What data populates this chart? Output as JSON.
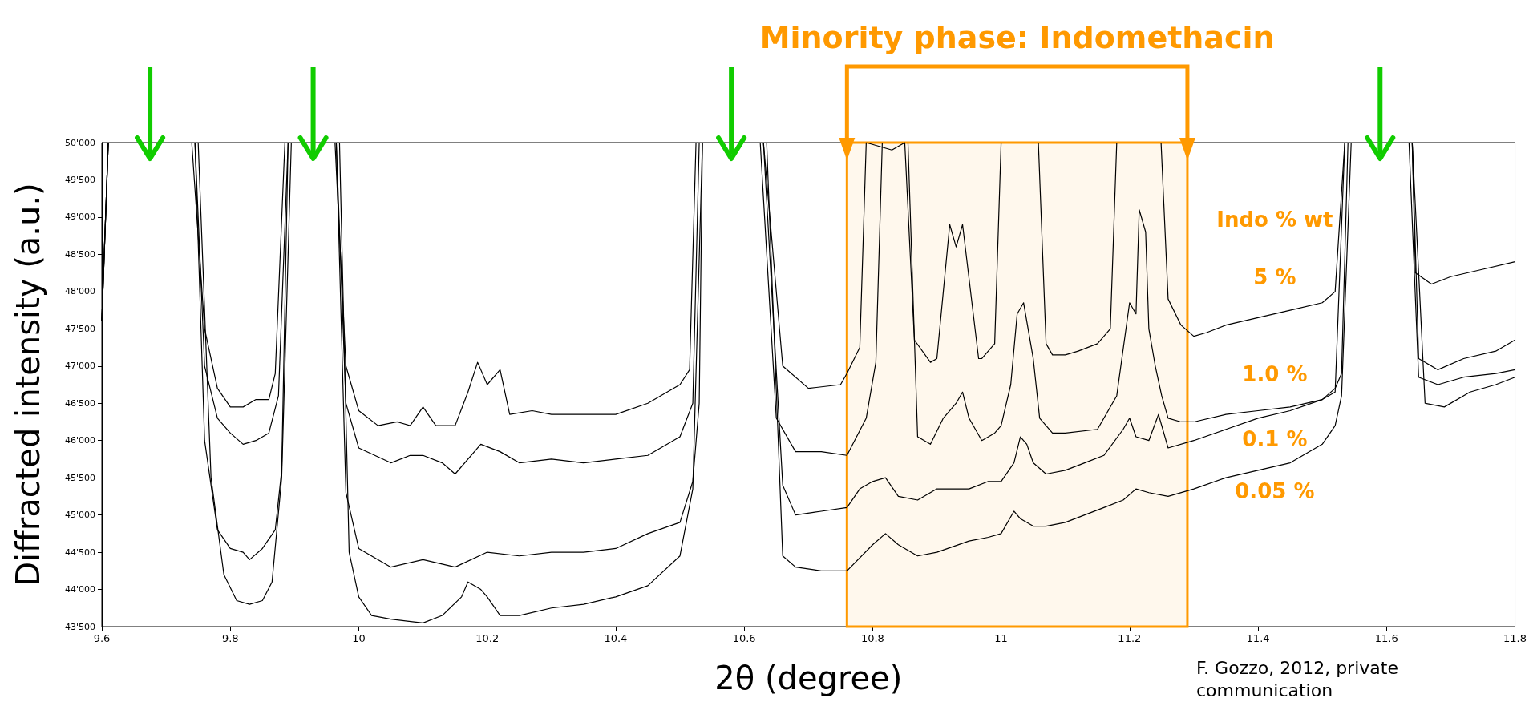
{
  "chart_data": {
    "type": "line",
    "xlabel": "2θ (degree)",
    "ylabel": "Diffracted intensity (a.u.)",
    "legend_title": "Indo % wt",
    "legend": false,
    "grid": false,
    "marker": "none",
    "line_style": "solid",
    "xlim": [
      9.6,
      11.8
    ],
    "xticks": [
      9.6,
      9.8,
      10,
      10.2,
      10.4,
      10.6,
      10.8,
      11,
      11.2,
      11.4,
      11.6,
      11.8
    ],
    "ylim": [
      43500,
      50000
    ],
    "yticks": [
      {
        "value": 43500,
        "label": "43'500"
      },
      {
        "value": 44000,
        "label": "44'000"
      },
      {
        "value": 44500,
        "label": "44'500"
      },
      {
        "value": 45000,
        "label": "45'000"
      },
      {
        "value": 45500,
        "label": "45'500"
      },
      {
        "value": 46000,
        "label": "46'000"
      },
      {
        "value": 46500,
        "label": "46'500"
      },
      {
        "value": 47000,
        "label": "47'000"
      },
      {
        "value": 47500,
        "label": "47'500"
      },
      {
        "value": 48000,
        "label": "48'000"
      },
      {
        "value": 48500,
        "label": "48'500"
      },
      {
        "value": 49000,
        "label": "49'000"
      },
      {
        "value": 49500,
        "label": "49'500"
      },
      {
        "value": 50000,
        "label": "50'000"
      }
    ],
    "bands": [
      {
        "axis": "x",
        "from": 10.76,
        "to": 11.29,
        "label": "Minority phase: Indomethacin",
        "color": "#ff9900"
      }
    ],
    "annotations": [
      "F. Gozzo, 2012, private communication"
    ],
    "series": [
      {
        "name": "5 %",
        "color": "#000000",
        "x": [
          9.6,
          9.61,
          9.675,
          9.74,
          9.76,
          9.78,
          9.8,
          9.82,
          9.84,
          9.86,
          9.87,
          9.885,
          9.925,
          9.963,
          9.98,
          10.0,
          10.03,
          10.06,
          10.08,
          10.1,
          10.12,
          10.15,
          10.17,
          10.185,
          10.2,
          10.22,
          10.235,
          10.27,
          10.3,
          10.35,
          10.4,
          10.45,
          10.5,
          10.515,
          10.525,
          10.58,
          10.63,
          10.66,
          10.7,
          10.75,
          10.76,
          10.78,
          10.79,
          10.83,
          10.85,
          10.865,
          10.89,
          10.9,
          10.92,
          10.93,
          10.94,
          10.965,
          10.97,
          10.99,
          11.0,
          11.03,
          11.058,
          11.07,
          11.08,
          11.1,
          11.12,
          11.15,
          11.17,
          11.18,
          11.215,
          11.249,
          11.26,
          11.28,
          11.3,
          11.32,
          11.35,
          11.4,
          11.45,
          11.5,
          11.52,
          11.535,
          11.59,
          11.64,
          11.645,
          11.67,
          11.7,
          11.75,
          11.8
        ],
        "values": [
          47600,
          50000,
          null,
          50000,
          47500,
          46700,
          46450,
          46450,
          46550,
          46550,
          46900,
          50000,
          null,
          50000,
          47000,
          46400,
          46200,
          46250,
          46200,
          46450,
          46200,
          46200,
          46650,
          47050,
          46750,
          46950,
          46350,
          46400,
          46350,
          46350,
          46350,
          46500,
          46750,
          46950,
          50000,
          null,
          50000,
          47000,
          46700,
          46750,
          46900,
          47250,
          50000,
          49900,
          50000,
          47350,
          47050,
          47100,
          48900,
          48600,
          48900,
          47100,
          47100,
          47300,
          50000,
          null,
          50000,
          47300,
          47150,
          47150,
          47200,
          47300,
          47500,
          50000,
          null,
          50000,
          47900,
          47550,
          47400,
          47450,
          47550,
          47650,
          47750,
          47850,
          48000,
          50000,
          null,
          50000,
          48250,
          48100,
          48200,
          48300,
          48400
        ]
      },
      {
        "name": "1.0 %",
        "color": "#000000",
        "x": [
          9.6,
          9.61,
          9.675,
          9.745,
          9.76,
          9.78,
          9.8,
          9.82,
          9.84,
          9.86,
          9.875,
          9.89,
          9.93,
          9.965,
          9.98,
          10.0,
          10.05,
          10.08,
          10.1,
          10.13,
          10.15,
          10.19,
          10.22,
          10.25,
          10.3,
          10.35,
          10.4,
          10.45,
          10.5,
          10.52,
          10.53,
          10.58,
          10.625,
          10.65,
          10.68,
          10.72,
          10.76,
          10.79,
          10.805,
          10.815,
          10.835,
          10.855,
          10.87,
          10.89,
          10.91,
          10.93,
          10.94,
          10.95,
          10.97,
          10.99,
          11.0,
          11.015,
          11.025,
          11.035,
          11.05,
          11.06,
          11.08,
          11.1,
          11.15,
          11.18,
          11.2,
          11.21,
          11.215,
          11.225,
          11.23,
          11.24,
          11.25,
          11.26,
          11.28,
          11.3,
          11.35,
          11.4,
          11.45,
          11.5,
          11.52,
          11.535,
          11.59,
          11.64,
          11.65,
          11.68,
          11.72,
          11.77,
          11.8
        ],
        "values": [
          47600,
          50000,
          null,
          50000,
          47000,
          46300,
          46100,
          45950,
          46000,
          46100,
          46600,
          50000,
          null,
          50000,
          46500,
          45900,
          45700,
          45800,
          45800,
          45700,
          45550,
          45950,
          45850,
          45700,
          45750,
          45700,
          45750,
          45800,
          46050,
          46500,
          50000,
          null,
          50000,
          46300,
          45850,
          45850,
          45800,
          46300,
          47050,
          50000,
          null,
          50000,
          46050,
          45950,
          46300,
          46500,
          46650,
          46300,
          46000,
          46100,
          46200,
          46750,
          47700,
          47850,
          47100,
          46300,
          46100,
          46100,
          46150,
          46600,
          47850,
          47700,
          49100,
          48800,
          47500,
          47000,
          46600,
          46300,
          46250,
          46250,
          46350,
          46400,
          46450,
          46550,
          46650,
          50000,
          null,
          50000,
          47100,
          46950,
          47100,
          47200,
          47350
        ]
      },
      {
        "name": "0.1 %",
        "color": "#000000",
        "x": [
          9.6,
          9.61,
          9.675,
          9.745,
          9.76,
          9.78,
          9.8,
          9.82,
          9.83,
          9.85,
          9.87,
          9.88,
          9.89,
          9.93,
          9.965,
          9.98,
          10.0,
          10.05,
          10.1,
          10.15,
          10.2,
          10.25,
          10.3,
          10.35,
          10.4,
          10.45,
          10.5,
          10.52,
          10.53,
          10.535,
          10.58,
          10.63,
          10.66,
          10.68,
          10.72,
          10.76,
          10.78,
          10.8,
          10.82,
          10.84,
          10.87,
          10.9,
          10.95,
          10.98,
          11.0,
          11.02,
          11.03,
          11.04,
          11.05,
          11.07,
          11.1,
          11.13,
          11.16,
          11.19,
          11.2,
          11.21,
          11.23,
          11.245,
          11.26,
          11.3,
          11.35,
          11.4,
          11.45,
          11.5,
          11.52,
          11.53,
          11.54,
          11.59,
          11.635,
          11.65,
          11.68,
          11.72,
          11.77,
          11.8
        ],
        "values": [
          47600,
          50000,
          null,
          50000,
          46000,
          44800,
          44550,
          44500,
          44400,
          44550,
          44800,
          45600,
          50000,
          null,
          50000,
          45300,
          44550,
          44300,
          44400,
          44300,
          44500,
          44450,
          44500,
          44500,
          44550,
          44750,
          44900,
          45450,
          46500,
          50000,
          null,
          50000,
          45400,
          45000,
          45050,
          45100,
          45350,
          45450,
          45500,
          45250,
          45200,
          45350,
          45350,
          45450,
          45450,
          45700,
          46050,
          45950,
          45700,
          45550,
          45600,
          45700,
          45800,
          46150,
          46300,
          46050,
          46000,
          46350,
          45900,
          46000,
          46150,
          46300,
          46400,
          46550,
          46700,
          46900,
          50000,
          null,
          50000,
          46850,
          46750,
          46850,
          46900,
          46950
        ]
      },
      {
        "name": "0.05 %",
        "color": "#000000",
        "x": [
          9.6,
          9.61,
          9.675,
          9.75,
          9.77,
          9.79,
          9.81,
          9.83,
          9.85,
          9.865,
          9.88,
          9.895,
          9.935,
          9.97,
          9.985,
          10.0,
          10.02,
          10.05,
          10.1,
          10.13,
          10.16,
          10.17,
          10.19,
          10.2,
          10.22,
          10.25,
          10.3,
          10.35,
          10.4,
          10.45,
          10.5,
          10.52,
          10.535,
          10.58,
          10.635,
          10.66,
          10.68,
          10.72,
          10.76,
          10.8,
          10.82,
          10.84,
          10.87,
          10.9,
          10.95,
          10.98,
          11.0,
          11.02,
          11.03,
          11.05,
          11.07,
          11.1,
          11.13,
          11.16,
          11.19,
          11.21,
          11.23,
          11.26,
          11.3,
          11.35,
          11.4,
          11.45,
          11.5,
          11.52,
          11.53,
          11.545,
          11.59,
          11.64,
          11.66,
          11.69,
          11.73,
          11.77,
          11.8
        ],
        "values": [
          47600,
          50000,
          null,
          50000,
          45500,
          44200,
          43850,
          43800,
          43850,
          44100,
          45500,
          50000,
          null,
          50000,
          44500,
          43900,
          43650,
          43600,
          43550,
          43650,
          43900,
          44100,
          44000,
          43900,
          43650,
          43650,
          43750,
          43800,
          43900,
          44050,
          44450,
          45350,
          50000,
          null,
          50000,
          44450,
          44300,
          44250,
          44250,
          44600,
          44750,
          44600,
          44450,
          44500,
          44650,
          44700,
          44750,
          45050,
          44950,
          44850,
          44850,
          44900,
          45000,
          45100,
          45200,
          45350,
          45300,
          45250,
          45350,
          45500,
          45600,
          45700,
          45950,
          46200,
          46600,
          50000,
          null,
          50000,
          46500,
          46450,
          46650,
          46750,
          46850
        ]
      }
    ]
  }
}
